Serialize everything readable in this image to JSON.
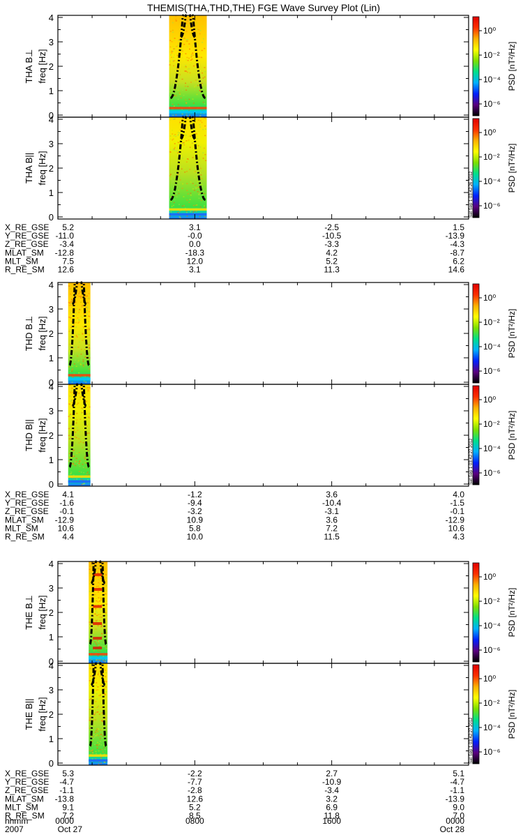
{
  "title": "THEMIS(THA,THD,THE) FGE Wave Survey Plot (Lin)",
  "colorbar": {
    "label": "PSD [nT²/Hz]",
    "ticks": [
      "10⁰",
      "10⁻²",
      "10⁻⁴",
      "10⁻⁶"
    ],
    "stops": [
      "#000000",
      "#5a0080",
      "#0020ff",
      "#00b0ff",
      "#00e08a",
      "#7ee000",
      "#ffff00",
      "#ffb000",
      "#ff3000",
      "#e00000"
    ]
  },
  "stamps": [
    "Sat Sep  1 03:42:26 2012",
    "Sat Sep  1 03:42:27 2012",
    "Sat Sep  1 03:42:27 2012"
  ],
  "orbit_labels": [
    "X_RE_GSE",
    "Y_RE_GSE",
    "Z_RE_GSE",
    "MLAT_SM",
    "MLT_SM",
    "R_RE_SM"
  ],
  "time_axis": {
    "labels": [
      "hhmm",
      "2007"
    ],
    "row1": [
      "0000",
      "0800",
      "1600",
      "0000"
    ],
    "row2": [
      "Oct 27",
      "",
      "",
      "Oct 28"
    ]
  },
  "chart_data": [
    {
      "type": "heatmap",
      "probe": "THA",
      "xlabel": "hhmm",
      "data_window_hours": [
        6.5,
        8.7
      ],
      "panels": [
        {
          "name": "THA B⊥",
          "ylabel": "freq [Hz]",
          "ylim": [
            0,
            4
          ],
          "yticks": [
            0,
            1,
            2,
            3,
            4
          ],
          "has_stamp": false
        },
        {
          "name": "THA B||",
          "ylabel": "freq [Hz]",
          "ylim": [
            0,
            4
          ],
          "yticks": [
            0,
            1,
            2,
            3,
            4
          ],
          "has_stamp": true
        }
      ],
      "orbit": [
        [
          "5.2",
          "3.1",
          "-2.5",
          "1.5"
        ],
        [
          "-11.0",
          "-0.0",
          "-10.5",
          "-13.9"
        ],
        [
          "-3.4",
          "0.0",
          "-3.3",
          "-4.3"
        ],
        [
          "-12.8",
          "-18.3",
          "4.2",
          "-8.7"
        ],
        [
          "7.5",
          "12.0",
          "5.2",
          "6.2"
        ],
        [
          "12.6",
          "3.1",
          "11.3",
          "14.6"
        ]
      ]
    },
    {
      "type": "heatmap",
      "probe": "THD",
      "xlabel": "hhmm",
      "data_window_hours": [
        0.6,
        1.9
      ],
      "panels": [
        {
          "name": "THD B⊥",
          "ylabel": "freq [Hz]",
          "ylim": [
            0,
            4
          ],
          "yticks": [
            0,
            1,
            2,
            3,
            4
          ],
          "has_stamp": false
        },
        {
          "name": "THD B||",
          "ylabel": "freq [Hz]",
          "ylim": [
            0,
            4
          ],
          "yticks": [
            0,
            1,
            2,
            3,
            4
          ],
          "has_stamp": true
        }
      ],
      "orbit": [
        [
          "4.1",
          "-1.2",
          "3.6",
          "4.0"
        ],
        [
          "-1.6",
          "-9.4",
          "-10.4",
          "-1.5"
        ],
        [
          "-0.1",
          "-3.2",
          "-3.1",
          "-0.1"
        ],
        [
          "-12.9",
          "10.9",
          "3.6",
          "-12.9"
        ],
        [
          "10.6",
          "5.8",
          "7.2",
          "10.6"
        ],
        [
          "4.4",
          "10.0",
          "11.5",
          "4.3"
        ]
      ]
    },
    {
      "type": "heatmap",
      "probe": "THE",
      "xlabel": "hhmm",
      "data_window_hours": [
        1.8,
        2.9
      ],
      "panels": [
        {
          "name": "THE B⊥",
          "ylabel": "freq [Hz]",
          "ylim": [
            0,
            4
          ],
          "yticks": [
            0,
            1,
            2,
            3,
            4
          ],
          "has_stamp": false
        },
        {
          "name": "THE B||",
          "ylabel": "freq [Hz]",
          "ylim": [
            0,
            4
          ],
          "yticks": [
            0,
            1,
            2,
            3,
            4
          ],
          "has_stamp": true
        }
      ],
      "orbit": [
        [
          "5.3",
          "-2.2",
          "2.7",
          "5.1"
        ],
        [
          "-4.7",
          "-7.7",
          "-10.9",
          "-4.7"
        ],
        [
          "-1.1",
          "-2.8",
          "-3.4",
          "-1.1"
        ],
        [
          "-13.8",
          "12.6",
          "3.2",
          "-13.9"
        ],
        [
          "9.1",
          "5.2",
          "6.9",
          "9.0"
        ],
        [
          "7.2",
          "8.5",
          "11.8",
          "7.0"
        ]
      ]
    }
  ]
}
